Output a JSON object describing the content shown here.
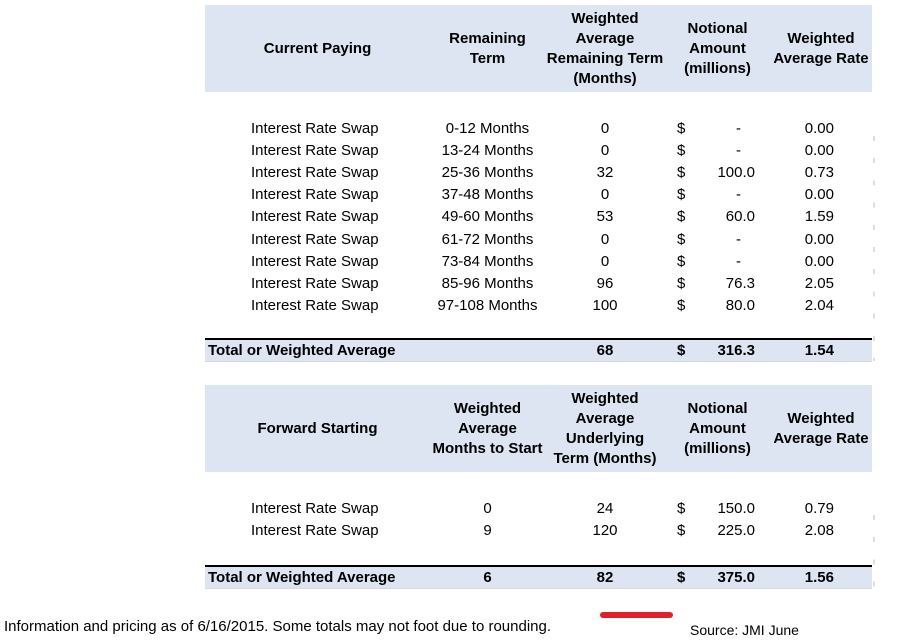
{
  "colors": {
    "header_bg": "#dce5f1",
    "total_row_bg": "#dce5f1",
    "total_row_top_border": "#000000",
    "red_bar": "#e02128",
    "text": "#000000"
  },
  "tables": [
    {
      "name": "Current Paying",
      "headers": [
        "Current Paying",
        "Remaining Term",
        "Weighted Average Remaining Term (Months)",
        "Notional Amount (millions)",
        "Weighted Average Rate"
      ],
      "currency": "$",
      "rows": [
        [
          "Interest Rate Swap",
          "0-12 Months",
          "0",
          "-",
          "0.00"
        ],
        [
          "Interest Rate Swap",
          "13-24 Months",
          "0",
          "-",
          "0.00"
        ],
        [
          "Interest Rate Swap",
          "25-36 Months",
          "32",
          "100.0",
          "0.73"
        ],
        [
          "Interest Rate Swap",
          "37-48 Months",
          "0",
          "-",
          "0.00"
        ],
        [
          "Interest Rate Swap",
          "49-60 Months",
          "53",
          "60.0",
          "1.59"
        ],
        [
          "Interest Rate Swap",
          "61-72 Months",
          "0",
          "-",
          "0.00"
        ],
        [
          "Interest Rate Swap",
          "73-84 Months",
          "0",
          "-",
          "0.00"
        ],
        [
          "Interest Rate Swap",
          "85-96 Months",
          "96",
          "76.3",
          "2.05"
        ],
        [
          "Interest Rate Swap",
          "97-108 Months",
          "100",
          "80.0",
          "2.04"
        ]
      ],
      "total": [
        "Total or Weighted Average",
        "",
        "68",
        "316.3",
        "1.54"
      ]
    },
    {
      "name": "Forward Starting",
      "headers": [
        "Forward Starting",
        "Weighted Average Months to Start",
        "Weighted Average Underlying Term (Months)",
        "Notional Amount (millions)",
        "Weighted Average Rate"
      ],
      "currency": "$",
      "rows": [
        [
          "Interest Rate Swap",
          "0",
          "24",
          "150.0",
          "0.79"
        ],
        [
          "Interest Rate Swap",
          "9",
          "120",
          "225.0",
          "2.08"
        ]
      ],
      "total": [
        "Total or Weighted Average",
        "6",
        "82",
        "375.0",
        "1.56"
      ]
    }
  ],
  "footer": {
    "note": "Information and pricing as of 6/16/2015. Some totals may not foot due to rounding.",
    "source": "Source: JMI June"
  }
}
